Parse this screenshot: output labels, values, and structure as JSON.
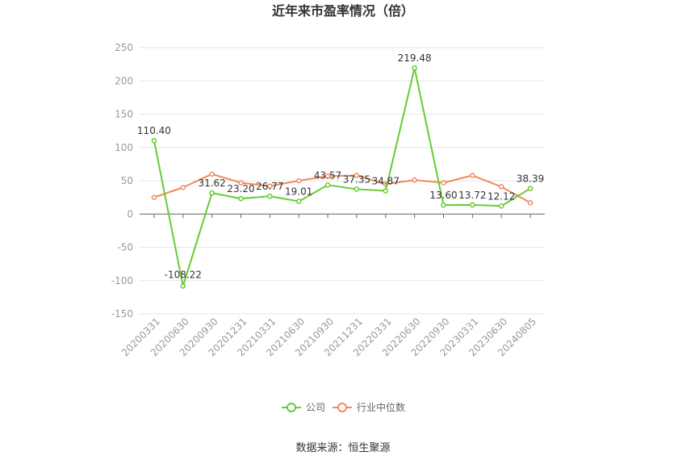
{
  "chart_data": {
    "type": "line",
    "title": "近年来市盈率情况（倍）",
    "categories": [
      "20200331",
      "20200630",
      "20200930",
      "20201231",
      "20210331",
      "20210630",
      "20210930",
      "20211231",
      "20220331",
      "20220630",
      "20220930",
      "20230331",
      "20230630",
      "20240805"
    ],
    "ylim": [
      -150,
      250
    ],
    "yticks": [
      -150,
      -100,
      -50,
      0,
      50,
      100,
      150,
      200,
      250
    ],
    "grid": true,
    "legend_position": "bottom",
    "series": [
      {
        "name": "公司",
        "color": "#66cc33",
        "values": [
          110.4,
          -108.22,
          31.62,
          23.2,
          26.77,
          19.01,
          43.57,
          37.35,
          34.87,
          219.48,
          13.6,
          13.72,
          12.12,
          38.39
        ],
        "labels": [
          "110.40",
          "-108.22",
          "31.62",
          "23.20",
          "26.77",
          "19.01",
          "43.57",
          "37.35",
          "34.87",
          "219.48",
          "13.60",
          "13.72",
          "12.12",
          "38.39"
        ]
      },
      {
        "name": "行业中位数",
        "color": "#f08a5d",
        "values": [
          25,
          40,
          60,
          47,
          42,
          50,
          57,
          58,
          45,
          51,
          47,
          58,
          41,
          17
        ]
      }
    ],
    "source": "数据来源：恒生聚源"
  }
}
